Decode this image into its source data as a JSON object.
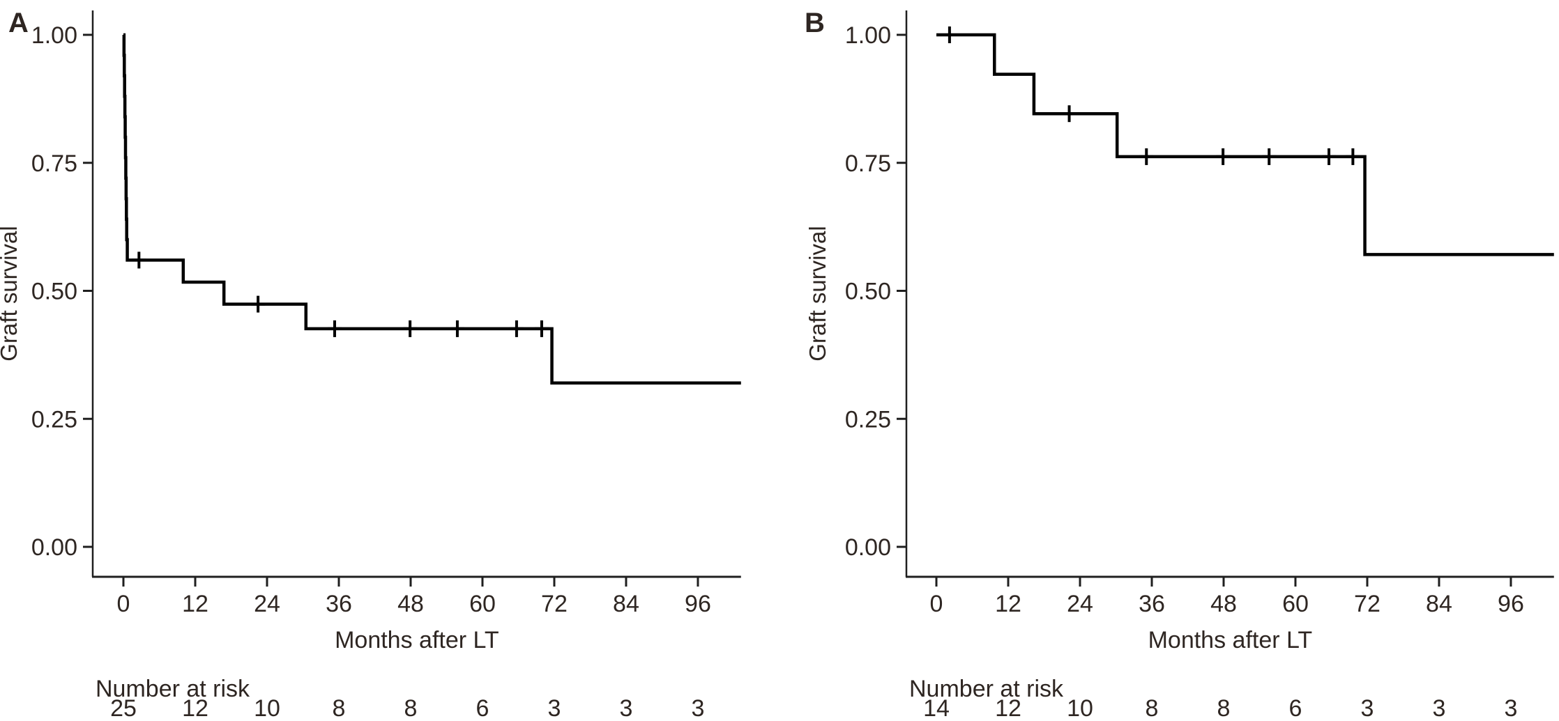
{
  "figure": {
    "background": "#ffffff",
    "text_color": "#2e2622",
    "axis_color": "#1f1f1f",
    "curve_color": "#000000"
  },
  "chart_data": [
    {
      "type": "line",
      "subtype": "kaplan-meier-step",
      "panel_label": "A",
      "xlabel": "Months after LT",
      "ylabel": "Graft survival",
      "xlim": [
        -5,
        109
      ],
      "ylim": [
        -0.06,
        1.05
      ],
      "grid": "off",
      "legend": "none",
      "x_ticks": [
        0,
        12,
        24,
        36,
        48,
        60,
        72,
        84,
        96
      ],
      "y_tick_labels": [
        "0.00",
        "0.25",
        "0.50",
        "0.75",
        "1.00"
      ],
      "y_tick_values": [
        0.0,
        0.25,
        0.5,
        0.75,
        1.0
      ],
      "km_steps": [
        [
          0,
          1.0
        ],
        [
          0.1,
          0.96
        ],
        [
          0.15,
          0.92
        ],
        [
          0.2,
          0.88
        ],
        [
          0.25,
          0.84
        ],
        [
          0.3,
          0.8
        ],
        [
          0.35,
          0.76
        ],
        [
          0.4,
          0.72
        ],
        [
          0.45,
          0.68
        ],
        [
          0.5,
          0.64
        ],
        [
          0.55,
          0.6
        ],
        [
          0.65,
          0.56
        ],
        [
          10,
          0.517
        ],
        [
          16.8,
          0.474
        ],
        [
          30.5,
          0.426
        ],
        [
          71.6,
          0.32
        ]
      ],
      "curve_end_month": 103.2,
      "censor_marks": [
        [
          2.6,
          0.56
        ],
        [
          22.5,
          0.474
        ],
        [
          35.3,
          0.426
        ],
        [
          47.9,
          0.426
        ],
        [
          55.8,
          0.426
        ],
        [
          65.7,
          0.426
        ],
        [
          69.9,
          0.426
        ]
      ],
      "number_at_risk": {
        "label": "Number at risk",
        "months": [
          0,
          12,
          24,
          36,
          48,
          60,
          72,
          84,
          96
        ],
        "values": [
          "25",
          "12",
          "10",
          "8",
          "8",
          "6",
          "3",
          "3",
          "3"
        ]
      }
    },
    {
      "type": "line",
      "subtype": "kaplan-meier-step",
      "panel_label": "B",
      "xlabel": "Months after LT",
      "ylabel": "Graft survival",
      "xlim": [
        -5,
        103.5
      ],
      "ylim": [
        -0.06,
        1.05
      ],
      "grid": "off",
      "legend": "none",
      "x_ticks": [
        0,
        12,
        24,
        36,
        48,
        60,
        72,
        84,
        96
      ],
      "y_tick_labels": [
        "0.00",
        "0.25",
        "0.50",
        "0.75",
        "1.00"
      ],
      "y_tick_values": [
        0.0,
        0.25,
        0.5,
        0.75,
        1.0
      ],
      "km_steps": [
        [
          0,
          1.0
        ],
        [
          9.7,
          0.923
        ],
        [
          16.3,
          0.846
        ],
        [
          30.2,
          0.762
        ],
        [
          71.6,
          0.571
        ]
      ],
      "curve_end_month": 103.2,
      "censor_marks": [
        [
          2.2,
          1.0
        ],
        [
          22.2,
          0.846
        ],
        [
          35.1,
          0.762
        ],
        [
          47.9,
          0.762
        ],
        [
          55.6,
          0.762
        ],
        [
          65.6,
          0.762
        ],
        [
          69.6,
          0.762
        ]
      ],
      "number_at_risk": {
        "label": "Number at risk",
        "months": [
          0,
          12,
          24,
          36,
          48,
          60,
          72,
          84,
          96
        ],
        "values": [
          "14",
          "12",
          "10",
          "8",
          "8",
          "6",
          "3",
          "3",
          "3"
        ]
      }
    }
  ]
}
